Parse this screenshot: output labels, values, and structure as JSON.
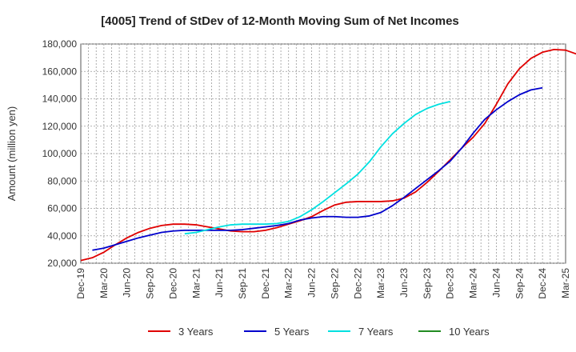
{
  "chart_data": {
    "type": "line",
    "title": "[4005]  Trend of StDev of 12-Month Moving Sum of Net Incomes",
    "ylabel": "Amount (million yen)",
    "xlabel": "",
    "ylim": [
      20000,
      180000
    ],
    "y_ticks": [
      20000,
      40000,
      60000,
      80000,
      100000,
      120000,
      140000,
      160000,
      180000
    ],
    "y_tick_labels": [
      "20,000",
      "40,000",
      "60,000",
      "80,000",
      "100,000",
      "120,000",
      "140,000",
      "160,000",
      "180,000"
    ],
    "x_tick_labels": [
      "Dec-19",
      "Mar-20",
      "Jun-20",
      "Sep-20",
      "Dec-20",
      "Mar-21",
      "Jun-21",
      "Sep-21",
      "Dec-21",
      "Mar-22",
      "Jun-22",
      "Sep-22",
      "Dec-22",
      "Mar-23",
      "Jun-23",
      "Sep-23",
      "Dec-23",
      "Mar-24",
      "Jun-24",
      "Sep-24",
      "Dec-24",
      "Mar-25"
    ],
    "grid": true,
    "legend_position": "bottom",
    "series": [
      {
        "name": "3 Years",
        "color": "#e00000",
        "start_index": 0,
        "values": [
          22000,
          24000,
          28000,
          33500,
          38500,
          42500,
          45500,
          47500,
          48500,
          48500,
          48000,
          46500,
          45000,
          43500,
          43000,
          43000,
          44000,
          46000,
          48500,
          51000,
          54000,
          58500,
          62500,
          64500,
          65000,
          65000,
          65000,
          65500,
          67500,
          72000,
          79000,
          87000,
          95500,
          104000,
          112000,
          122000,
          136000,
          151000,
          162000,
          169500,
          174000,
          176000,
          175500,
          172500
        ]
      },
      {
        "name": "5 Years",
        "color": "#0000cc",
        "start_index": 1,
        "values": [
          29500,
          31000,
          33500,
          36000,
          38500,
          40500,
          42500,
          43500,
          44000,
          44000,
          44000,
          44000,
          44000,
          44500,
          45500,
          46500,
          47500,
          49000,
          51500,
          53000,
          54000,
          54000,
          53500,
          53500,
          54500,
          57000,
          62000,
          68000,
          74500,
          81000,
          87500,
          94500,
          104000,
          115000,
          125000,
          132000,
          138000,
          143000,
          146500,
          148000
        ]
      },
      {
        "name": "7 Years",
        "color": "#00e0e0",
        "start_index": 9,
        "values": [
          41500,
          42500,
          44500,
          46500,
          48000,
          48500,
          48500,
          48500,
          49000,
          50500,
          54000,
          59000,
          65000,
          71500,
          78000,
          85000,
          94000,
          105000,
          114500,
          122000,
          128500,
          133000,
          136000,
          138000
        ]
      },
      {
        "name": "10 Years",
        "color": "#228b22",
        "start_index": 0,
        "values": []
      }
    ]
  }
}
